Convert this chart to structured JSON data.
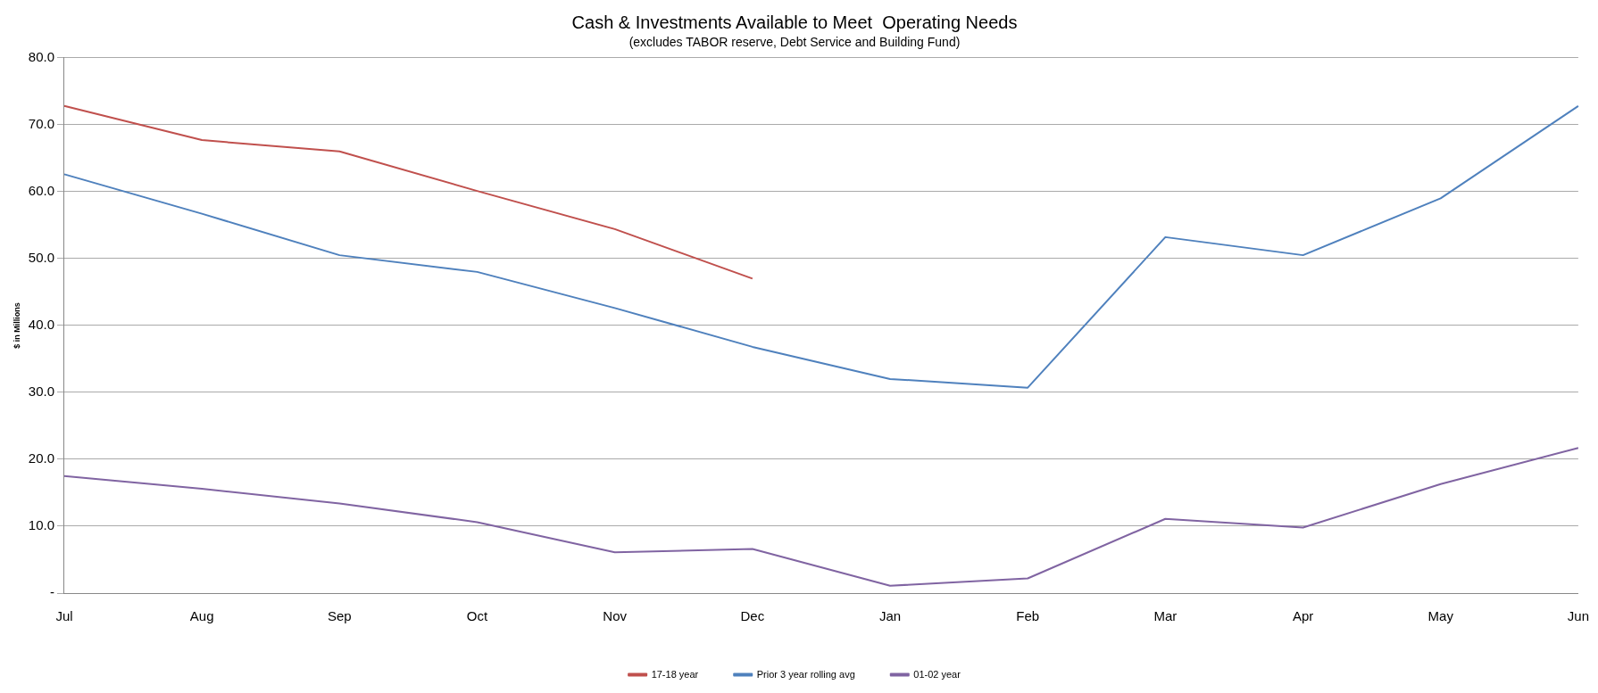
{
  "chart_data": {
    "type": "line",
    "title": "Cash & Investments Available to Meet  Operating Needs",
    "subtitle": "(excludes TABOR reserve, Debt Service and Building Fund)",
    "ylabel": "$ in Millions",
    "categories": [
      "Jul",
      "Aug",
      "Sep",
      "Oct",
      "Nov",
      "Dec",
      "Jan",
      "Feb",
      "Mar",
      "Apr",
      "May",
      "Jun"
    ],
    "series": [
      {
        "name": "17-18 year",
        "color": "#c0504d",
        "values": [
          72.8,
          67.7,
          66.0,
          60.1,
          54.4,
          47.0,
          null,
          null,
          null,
          null,
          null,
          null
        ]
      },
      {
        "name": "Prior 3 year rolling avg",
        "color": "#4f81bd",
        "values": [
          62.6,
          56.7,
          50.5,
          48.0,
          42.6,
          36.8,
          32.0,
          30.7,
          53.2,
          50.5,
          59.0,
          72.8
        ]
      },
      {
        "name": "01-02 year",
        "color": "#8064a2",
        "values": [
          17.5,
          15.6,
          13.4,
          10.6,
          6.1,
          6.6,
          1.1,
          2.2,
          11.1,
          9.8,
          16.3,
          21.7
        ]
      }
    ],
    "ylim": [
      0,
      80
    ],
    "yticks": [
      {
        "value": 0,
        "label": "-"
      },
      {
        "value": 10,
        "label": "10.0"
      },
      {
        "value": 20,
        "label": "20.0"
      },
      {
        "value": 30,
        "label": "30.0"
      },
      {
        "value": 40,
        "label": "40.0"
      },
      {
        "value": 50,
        "label": "50.0"
      },
      {
        "value": 60,
        "label": "60.0"
      },
      {
        "value": 70,
        "label": "70.0"
      },
      {
        "value": 80,
        "label": "80.0"
      }
    ],
    "grid": "y",
    "legend": "bottom",
    "marker": "none",
    "line_style": "solid"
  }
}
